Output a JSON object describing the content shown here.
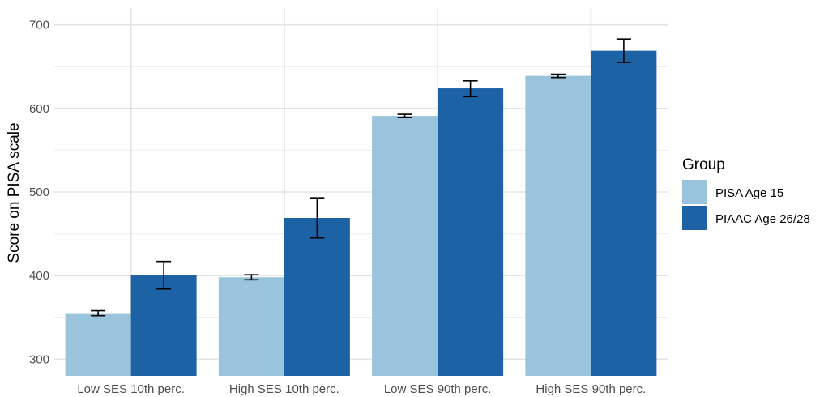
{
  "chart_data": {
    "type": "bar",
    "categories": [
      "Low SES 10th perc.",
      "High SES 10th perc.",
      "Low SES 90th perc.",
      "High SES 90th perc."
    ],
    "series": [
      {
        "name": "PISA Age 15",
        "color": "#9ac4dc",
        "values": [
          355,
          398,
          591,
          639
        ],
        "error_low": [
          352,
          395,
          589,
          637
        ],
        "error_high": [
          358,
          401,
          593,
          641
        ]
      },
      {
        "name": "PIAAC Age 26/28",
        "color": "#1c62a5",
        "values": [
          401,
          469,
          624,
          669
        ],
        "error_low": [
          384,
          445,
          614,
          655
        ],
        "error_high": [
          417,
          493,
          633,
          683
        ]
      }
    ],
    "ylabel": "Score on PISA scale",
    "xlabel": "",
    "ylim": [
      280,
      720
    ],
    "yticks": [
      300,
      400,
      500,
      600,
      700
    ],
    "legend": {
      "title": "Group",
      "position": "right"
    },
    "grid": true
  }
}
